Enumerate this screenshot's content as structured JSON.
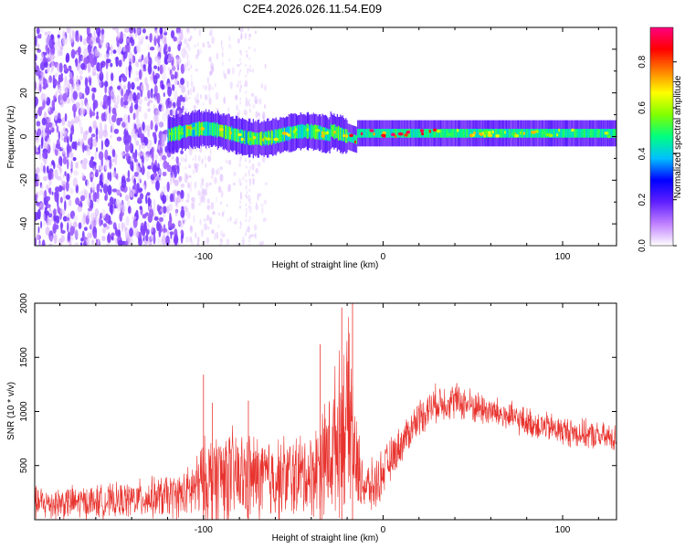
{
  "title": "C2E4.2026.026.11.54.E09",
  "colors": {
    "snr_line": "#e8332e",
    "axis": "#000000",
    "background": "#ffffff"
  },
  "chart_data": [
    {
      "type": "heatmap",
      "name": "spectrogram",
      "xlabel": "Height of straight line (km)",
      "ylabel": "Frequency (Hz)",
      "xlim": [
        -194,
        130
      ],
      "ylim": [
        -50,
        50
      ],
      "xticks": [
        -100,
        0,
        100
      ],
      "yticks": [
        -40,
        -20,
        0,
        20,
        40
      ],
      "xtick_labels": [
        "-100",
        "0",
        "100"
      ],
      "ytick_labels": [
        "-40",
        "-20",
        "0",
        "20",
        "40"
      ],
      "colorbar": {
        "label": "Normalized spectral amplitude",
        "range": [
          0,
          0.95
        ],
        "ticks": [
          0.0,
          0.2,
          0.4,
          0.6,
          0.8
        ],
        "tick_labels": [
          "0.0",
          "0.2",
          "0.4",
          "0.6",
          "0.8"
        ],
        "stops": [
          "#ffffff",
          "#c080ff",
          "#6020ff",
          "#0000ff",
          "#00c0ff",
          "#00ff80",
          "#80ff00",
          "#ffff00",
          "#ff8000",
          "#ff0000",
          "#ff0080"
        ]
      },
      "regions": [
        {
          "desc": "broadband noise",
          "x": [
            -194,
            -110
          ],
          "f": [
            -50,
            50
          ],
          "level": 0.12
        },
        {
          "desc": "diffuse scatter",
          "x": [
            -110,
            -65
          ],
          "f": [
            -50,
            50
          ],
          "level": 0.03
        },
        {
          "desc": "strong narrow band",
          "x": [
            -120,
            130
          ],
          "f_center": 1.5,
          "f_halfwidth": 4,
          "level_range": [
            0.3,
            0.95
          ]
        }
      ]
    },
    {
      "type": "line",
      "name": "snr",
      "xlabel": "Height of straight line (km)",
      "ylabel": "SNR (10 * v/v)",
      "xlim": [
        -194,
        130
      ],
      "ylim": [
        0,
        2000
      ],
      "xticks": [
        -100,
        0,
        100
      ],
      "yticks": [
        500,
        1000,
        1500,
        2000
      ],
      "xtick_labels": [
        "-100",
        "0",
        "100"
      ],
      "ytick_labels": [
        "500",
        "1000",
        "1500",
        "2000"
      ],
      "envelope": {
        "x": [
          -194,
          -150,
          -110,
          -100,
          -90,
          -80,
          -60,
          -40,
          -30,
          -22,
          -18,
          -15,
          -10,
          -5,
          0,
          10,
          20,
          30,
          40,
          60,
          80,
          100,
          120,
          130
        ],
        "mean": [
          150,
          170,
          230,
          350,
          420,
          380,
          380,
          420,
          600,
          900,
          950,
          500,
          300,
          300,
          450,
          700,
          950,
          1080,
          1100,
          1000,
          900,
          820,
          770,
          750
        ],
        "amp": [
          180,
          180,
          250,
          450,
          550,
          500,
          450,
          450,
          700,
          900,
          1000,
          500,
          250,
          300,
          250,
          200,
          200,
          200,
          200,
          170,
          160,
          160,
          150,
          150
        ]
      },
      "peaks": [
        {
          "x": -100,
          "y": 1340
        },
        {
          "x": -95,
          "y": 1080
        },
        {
          "x": -75,
          "y": 1100
        },
        {
          "x": -35,
          "y": 1620
        },
        {
          "x": -23,
          "y": 1960
        },
        {
          "x": -17,
          "y": 2000
        }
      ]
    }
  ]
}
